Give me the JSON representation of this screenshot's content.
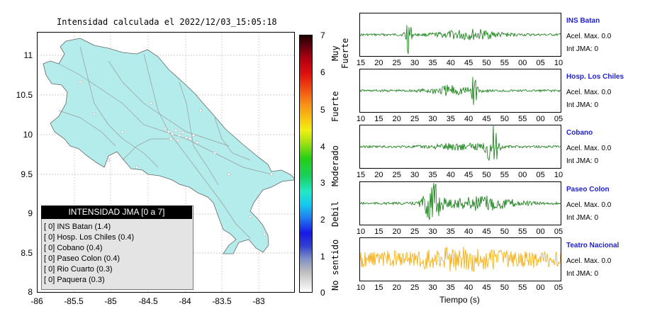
{
  "map": {
    "title": "Intensidad calculada el 2022/12/03_15:05:18",
    "y_ticks": [
      "11",
      "10.5",
      "10",
      "9.5",
      "9",
      "8.5",
      "8"
    ],
    "x_ticks": [
      "-86",
      "-85.5",
      "-85",
      "-84.5",
      "-84",
      "-83.5",
      "-83"
    ],
    "land_color": "#b4ecec"
  },
  "legend": {
    "title": "INTENSIDAD JMA [0 a 7]",
    "items": [
      "[ 0]  INS Batan (1.4)",
      "[ 0]  Hosp. Los Chiles (0.4)",
      "[ 0]  Cobano (0.4)",
      "[ 0]  Paseo Colon (0.4)",
      "[ 0]  Rio Cuarto (0.3)",
      "[ 0]  Paquera (0.3)"
    ]
  },
  "colorbar": {
    "ticks": [
      "7",
      "6",
      "5",
      "4",
      "3",
      "2",
      "1",
      "0"
    ],
    "labels": [
      "Muy Fuerte",
      "Fuerte",
      "Moderado",
      "Debil",
      "No sentido"
    ]
  },
  "stations": [
    {
      "name": "INS Batan",
      "acel": "Acel. Max. 0.0",
      "jma": "Int JMA: 0",
      "color": "#0a7a0a",
      "ticks": [
        "15",
        "20",
        "25",
        "30",
        "35",
        "40",
        "45",
        "50",
        "55",
        "00",
        "05",
        "10"
      ],
      "events": [
        {
          "pos": 0.24,
          "amp": 1.0,
          "w": 0.02
        },
        {
          "pos": 0.55,
          "amp": 0.25,
          "w": 0.2
        }
      ]
    },
    {
      "name": "Hosp. Los Chiles",
      "acel": "Acel. Max. 0.0",
      "jma": "Int JMA: 0",
      "color": "#0a7a0a",
      "ticks": [
        "10",
        "15",
        "20",
        "25",
        "30",
        "35",
        "40",
        "45",
        "50",
        "55",
        "00",
        "05"
      ],
      "events": [
        {
          "pos": 0.57,
          "amp": 1.0,
          "w": 0.02
        },
        {
          "pos": 0.45,
          "amp": 0.25,
          "w": 0.15
        }
      ]
    },
    {
      "name": "Cobano",
      "acel": "Acel. Max. 0.0",
      "jma": "Int JMA: 0",
      "color": "#0a7a0a",
      "ticks": [
        "15",
        "20",
        "25",
        "30",
        "35",
        "40",
        "45",
        "50",
        "55",
        "00",
        "05",
        "10"
      ],
      "events": [
        {
          "pos": 0.66,
          "amp": 1.0,
          "w": 0.04
        },
        {
          "pos": 0.5,
          "amp": 0.15,
          "w": 0.2
        }
      ]
    },
    {
      "name": "Paseo Colon",
      "acel": "Acel. Max. 0.0",
      "jma": "Int JMA: 0",
      "color": "#0a7a0a",
      "ticks": [
        "10",
        "15",
        "20",
        "25",
        "30",
        "35",
        "40",
        "45",
        "50",
        "55",
        "00",
        "05"
      ],
      "events": [
        {
          "pos": 0.36,
          "amp": 1.0,
          "w": 0.06
        },
        {
          "pos": 0.6,
          "amp": 0.35,
          "w": 0.25
        }
      ]
    },
    {
      "name": "Teatro Nacional",
      "acel": "Acel. Max. 0.0",
      "jma": "Int JMA: 0",
      "color": "#f5a800",
      "ticks": [
        "10",
        "15",
        "20",
        "25",
        "30",
        "35",
        "40",
        "45",
        "50",
        "55",
        "00",
        "05"
      ],
      "events": [
        {
          "pos": 0.5,
          "amp": 0.85,
          "w": 0.9
        }
      ]
    }
  ],
  "xlabel": "Tiempo (s)"
}
